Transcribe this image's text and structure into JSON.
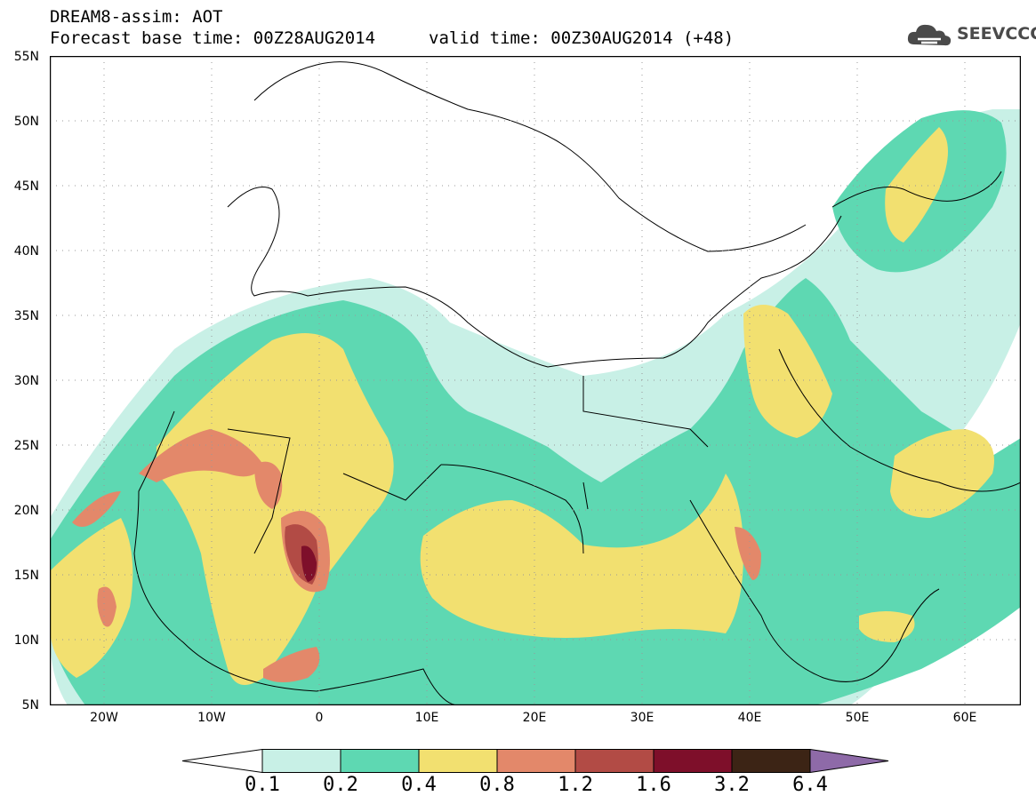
{
  "title": {
    "line1": "DREAM8-assim: AOT",
    "line2": "Forecast base time: 00Z28AUG2014",
    "line3": "valid time: 00Z30AUG2014 (+48)"
  },
  "logo": {
    "text": "SEEVCCC"
  },
  "axes": {
    "y_labels": [
      "55N",
      "50N",
      "45N",
      "40N",
      "35N",
      "30N",
      "25N",
      "20N",
      "15N",
      "10N",
      "5N"
    ],
    "x_labels": [
      "20W",
      "10W",
      "0",
      "10E",
      "20E",
      "30E",
      "40E",
      "50E",
      "60E"
    ],
    "lon_range": [
      -25,
      65
    ],
    "lat_range": [
      5,
      55
    ]
  },
  "colorbar": {
    "levels": [
      "0.1",
      "0.2",
      "0.4",
      "0.8",
      "1.2",
      "1.6",
      "3.2",
      "6.4"
    ],
    "colors": [
      "#c8f0e6",
      "#5ed8b2",
      "#f2e070",
      "#e3886a",
      "#b24b45",
      "#7e0f2a",
      "#3c2415"
    ],
    "under_color": "#ffffff",
    "over_color": "#8e6aa8"
  }
}
